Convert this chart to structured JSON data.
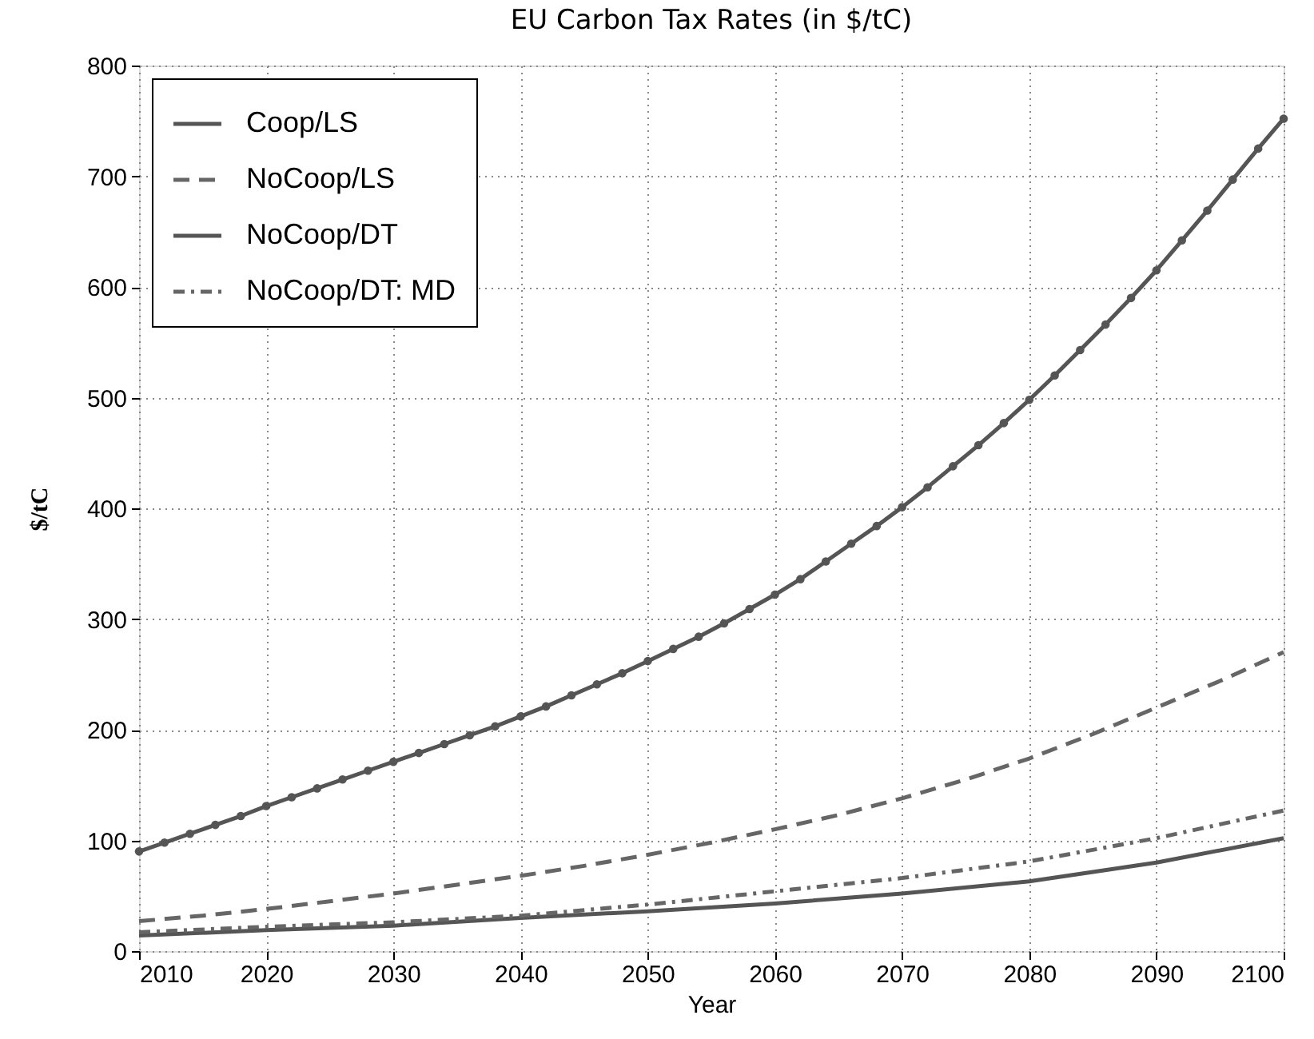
{
  "chart_data": {
    "type": "line",
    "title": "EU Carbon Tax Rates (in $/tC)",
    "xlabel": "Year",
    "ylabel": "$/tC",
    "xlim": [
      2010,
      2100
    ],
    "xticks": [
      2010,
      2020,
      2030,
      2040,
      2050,
      2060,
      2070,
      2080,
      2090,
      2100
    ],
    "ylim": [
      0,
      800
    ],
    "yticks": [
      0,
      100,
      200,
      300,
      400,
      500,
      600,
      700,
      800
    ],
    "grid": true,
    "legend": "top left",
    "series": [
      {
        "name": "Coop/LS",
        "color": "#555555",
        "line_style": "solid",
        "marker": "circle",
        "x": [
          2010,
          2012,
          2014,
          2016,
          2018,
          2020,
          2022,
          2024,
          2026,
          2028,
          2030,
          2032,
          2034,
          2036,
          2038,
          2040,
          2042,
          2044,
          2046,
          2048,
          2050,
          2052,
          2054,
          2056,
          2058,
          2060,
          2062,
          2064,
          2066,
          2068,
          2070,
          2072,
          2074,
          2076,
          2078,
          2080,
          2082,
          2084,
          2086,
          2088,
          2090,
          2092,
          2094,
          2096,
          2098,
          2100
        ],
        "values": [
          90,
          98,
          106,
          114,
          122,
          131,
          139,
          147,
          155,
          163,
          171,
          179,
          187,
          195,
          203,
          212,
          221,
          231,
          241,
          251,
          262,
          273,
          284,
          296,
          309,
          322,
          336,
          352,
          368,
          384,
          401,
          419,
          438,
          457,
          477,
          498,
          520,
          543,
          566,
          590,
          615,
          642,
          669,
          697,
          725,
          752
        ]
      },
      {
        "name": "NoCoop/LS",
        "color": "#666666",
        "line_style": "dashed",
        "x": [
          2010,
          2015,
          2020,
          2025,
          2030,
          2035,
          2040,
          2045,
          2050,
          2055,
          2060,
          2065,
          2070,
          2075,
          2080,
          2085,
          2090,
          2095,
          2100
        ],
        "values": [
          27,
          32,
          38,
          45,
          52,
          60,
          68,
          77,
          87,
          98,
          110,
          123,
          138,
          155,
          174,
          196,
          220,
          244,
          270
        ]
      },
      {
        "name": "NoCoop/DT",
        "color": "#555555",
        "line_style": "solid",
        "x": [
          2010,
          2020,
          2030,
          2040,
          2050,
          2060,
          2070,
          2080,
          2090,
          2100
        ],
        "values": [
          14,
          19,
          23,
          30,
          36,
          43,
          52,
          63,
          80,
          102
        ]
      },
      {
        "name": "NoCoop/DT: MD",
        "color": "#666666",
        "line_style": "dashdot",
        "x": [
          2010,
          2020,
          2030,
          2040,
          2050,
          2060,
          2070,
          2080,
          2090,
          2100
        ],
        "values": [
          17,
          22,
          26,
          32,
          42,
          54,
          66,
          81,
          102,
          127
        ]
      }
    ]
  }
}
